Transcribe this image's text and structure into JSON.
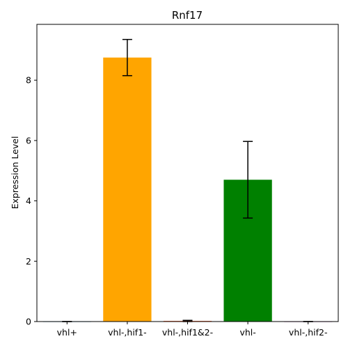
{
  "chart_data": {
    "type": "bar",
    "title": "Rnf17",
    "xlabel": "",
    "ylabel": "Expression Level",
    "categories": [
      "vhl+",
      "vhl-,hif1-",
      "vhl-,hif1&2-",
      "vhl-",
      "vhl-,hif2-"
    ],
    "values": [
      0.0,
      8.75,
      0.02,
      4.7,
      0.0
    ],
    "errors": [
      0.0,
      0.6,
      0.02,
      1.27,
      0.0
    ],
    "colors": [
      "#1f77b4",
      "#ffa500",
      "#ff4500",
      "#008000",
      "#800080"
    ],
    "ylim": [
      0,
      9.85
    ],
    "yticks": [
      0,
      2,
      4,
      6,
      8
    ],
    "grid": false,
    "legend": "none"
  }
}
